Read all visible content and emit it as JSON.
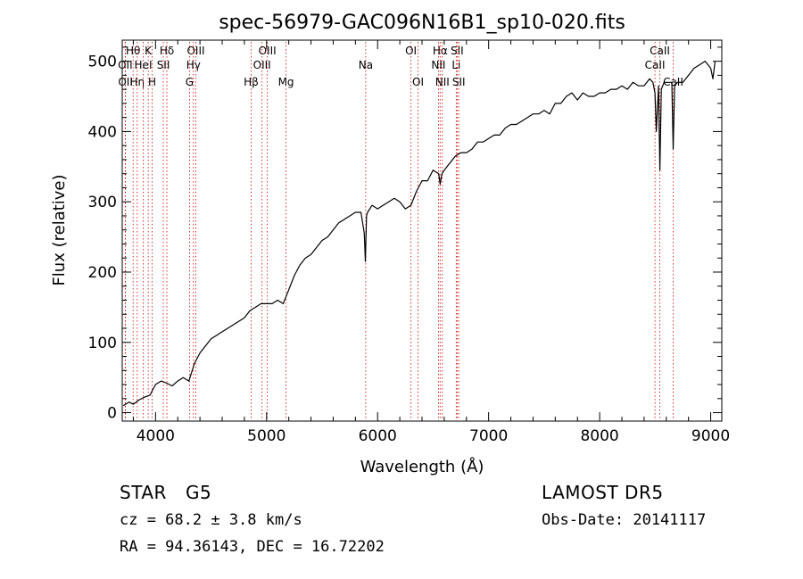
{
  "chart_data": {
    "type": "line",
    "title": "spec-56979-GAC096N16B1_sp10-020.fits",
    "xlabel": "Wavelength (Å)",
    "ylabel": "Flux (relative)",
    "xlim": [
      3700,
      9100
    ],
    "ylim": [
      -12,
      530
    ],
    "x_ticks": [
      4000,
      5000,
      6000,
      7000,
      8000,
      9000
    ],
    "y_ticks": [
      0,
      100,
      200,
      300,
      400,
      500
    ],
    "grid": false,
    "line_color": "#000000",
    "marker_color": "#cc0000",
    "series": [
      {
        "x": [
          3710,
          3760,
          3800,
          3850,
          3900,
          3950,
          4000,
          4050,
          4100,
          4150,
          4200,
          4250,
          4300,
          4350,
          4400,
          4450,
          4500,
          4550,
          4600,
          4650,
          4700,
          4750,
          4800,
          4850,
          4900,
          4950,
          5000,
          5050,
          5100,
          5150,
          5200,
          5250,
          5300,
          5350,
          5400,
          5450,
          5500,
          5550,
          5600,
          5650,
          5700,
          5750,
          5800,
          5850,
          5880,
          5890,
          5900,
          5910,
          5950,
          6000,
          6050,
          6100,
          6150,
          6200,
          6250,
          6300,
          6350,
          6400,
          6450,
          6500,
          6550,
          6563,
          6580,
          6600,
          6650,
          6700,
          6750,
          6800,
          6850,
          6900,
          6950,
          7000,
          7050,
          7100,
          7150,
          7200,
          7250,
          7300,
          7350,
          7400,
          7450,
          7500,
          7550,
          7600,
          7650,
          7700,
          7750,
          7800,
          7850,
          7900,
          7950,
          8000,
          8050,
          8100,
          8150,
          8200,
          8250,
          8300,
          8350,
          8400,
          8450,
          8480,
          8498,
          8510,
          8530,
          8542,
          8555,
          8580,
          8620,
          8650,
          8662,
          8675,
          8700,
          8750,
          8800,
          8850,
          8900,
          8950,
          9000,
          9020,
          9040
        ],
        "y": [
          10,
          15,
          12,
          18,
          22,
          25,
          40,
          45,
          42,
          38,
          45,
          50,
          45,
          70,
          85,
          95,
          105,
          110,
          115,
          120,
          125,
          130,
          135,
          145,
          150,
          155,
          155,
          155,
          160,
          155,
          175,
          195,
          210,
          220,
          225,
          235,
          245,
          250,
          260,
          270,
          275,
          280,
          285,
          285,
          255,
          215,
          280,
          285,
          295,
          290,
          295,
          300,
          305,
          300,
          290,
          295,
          315,
          330,
          330,
          345,
          340,
          325,
          340,
          345,
          355,
          365,
          370,
          370,
          375,
          385,
          385,
          390,
          395,
          395,
          405,
          410,
          410,
          415,
          420,
          425,
          425,
          430,
          425,
          440,
          440,
          450,
          455,
          445,
          455,
          450,
          450,
          455,
          455,
          460,
          460,
          465,
          460,
          470,
          465,
          465,
          475,
          470,
          455,
          400,
          465,
          345,
          460,
          470,
          470,
          470,
          375,
          465,
          470,
          470,
          480,
          490,
          495,
          500,
          490,
          475,
          500
        ]
      }
    ],
    "line_markers": [
      {
        "label": "Hθ",
        "wave": 3798,
        "row": 1
      },
      {
        "label": "OII",
        "wave": 3727,
        "row": 2
      },
      {
        "label": "OII",
        "wave": 3729,
        "row": 3
      },
      {
        "label": "K",
        "wave": 3934,
        "row": 1
      },
      {
        "label": "Hη",
        "wave": 3835,
        "row": 3
      },
      {
        "label": "HeI",
        "wave": 3889,
        "row": 2
      },
      {
        "label": "H",
        "wave": 3969,
        "row": 3
      },
      {
        "label": "Hδ",
        "wave": 4102,
        "row": 1
      },
      {
        "label": "SII",
        "wave": 4070,
        "row": 2
      },
      {
        "label": "OIII",
        "wave": 4363,
        "row": 1
      },
      {
        "label": "Hγ",
        "wave": 4341,
        "row": 2
      },
      {
        "label": "G",
        "wave": 4306,
        "row": 3
      },
      {
        "label": "Hβ",
        "wave": 4861,
        "row": 3
      },
      {
        "label": "OIII",
        "wave": 5007,
        "row": 1
      },
      {
        "label": "OIII",
        "wave": 4959,
        "row": 2
      },
      {
        "label": "Mg",
        "wave": 5175,
        "row": 3
      },
      {
        "label": "Na",
        "wave": 5893,
        "row": 2
      },
      {
        "label": "OI",
        "wave": 6300,
        "row": 1
      },
      {
        "label": "OI",
        "wave": 6364,
        "row": 3
      },
      {
        "label": "Hα",
        "wave": 6563,
        "row": 1
      },
      {
        "label": "NII",
        "wave": 6548,
        "row": 2
      },
      {
        "label": "NII",
        "wave": 6583,
        "row": 3
      },
      {
        "label": "SII",
        "wave": 6716,
        "row": 1
      },
      {
        "label": "Li",
        "wave": 6708,
        "row": 2
      },
      {
        "label": "SII",
        "wave": 6731,
        "row": 3
      },
      {
        "label": "CaII",
        "wave": 8542,
        "row": 1
      },
      {
        "label": "CaII",
        "wave": 8498,
        "row": 2
      },
      {
        "label": "CaII",
        "wave": 8662,
        "row": 3
      }
    ]
  },
  "info": {
    "obj_class": "STAR",
    "subclass": "G5",
    "survey": "LAMOST DR5",
    "redshift": "cz = 68.2 ± 3.8 km/s",
    "obs_date": "Obs-Date: 20141117",
    "coords": "RA =  94.36143, DEC =  16.72202"
  }
}
